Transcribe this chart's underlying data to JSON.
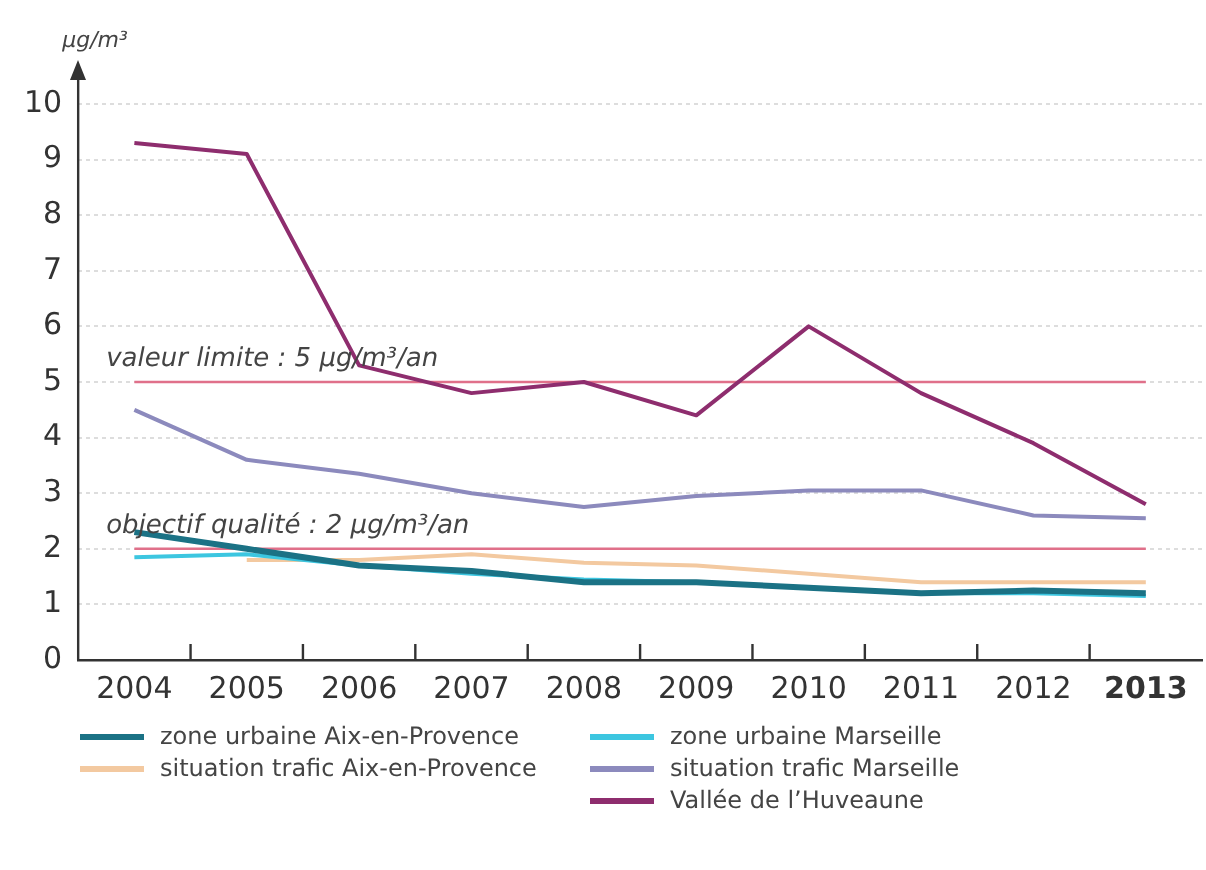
{
  "chart_data": {
    "type": "line",
    "ylabel": "µg/m³",
    "categories": [
      "2004",
      "2005",
      "2006",
      "2007",
      "2008",
      "2009",
      "2010",
      "2011",
      "2012",
      "2013"
    ],
    "ylim": [
      0,
      10
    ],
    "yticks": [
      0,
      1,
      2,
      3,
      4,
      5,
      6,
      7,
      8,
      9,
      10
    ],
    "grid": "y",
    "legend": "bottom",
    "marker": "none",
    "line_style": "solid",
    "series": [
      {
        "name": "zone urbaine Aix-en-Provence",
        "color": "#1b7285",
        "values": [
          2.3,
          2.0,
          1.7,
          1.6,
          1.4,
          1.4,
          1.3,
          1.2,
          1.25,
          1.2
        ]
      },
      {
        "name": "zone urbaine Marseille",
        "color": "#3cc6e0",
        "values": [
          1.85,
          1.9,
          1.7,
          1.55,
          1.45,
          1.4,
          1.3,
          1.2,
          1.2,
          1.15
        ]
      },
      {
        "name": "situation trafic Aix-en-Provence",
        "color": "#f3c9a0",
        "values": [
          null,
          1.8,
          1.8,
          1.9,
          1.75,
          1.7,
          1.55,
          1.4,
          1.4,
          1.4
        ]
      },
      {
        "name": "situation trafic Marseille",
        "color": "#8c8abd",
        "values": [
          4.5,
          3.6,
          3.35,
          3.0,
          2.75,
          2.95,
          3.05,
          3.05,
          2.6,
          2.55
        ]
      },
      {
        "name": "Vallée de l’Huveaune",
        "color": "#8e2d6e",
        "values": [
          9.3,
          9.1,
          5.3,
          4.8,
          5.0,
          4.4,
          6.0,
          4.8,
          3.9,
          2.8
        ]
      }
    ],
    "ref_lines": [
      {
        "axis": "y",
        "value": 5,
        "label": "valeur limite : 5 µg/m³/an",
        "color": "#e0708a"
      },
      {
        "axis": "y",
        "value": 2,
        "label": "objectif qualité : 2 µg/m³/an",
        "color": "#e0708a"
      }
    ]
  }
}
